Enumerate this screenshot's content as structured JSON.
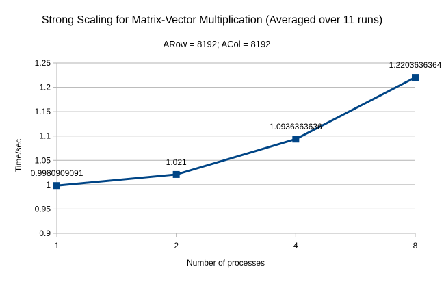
{
  "chart_data": {
    "type": "line",
    "title": "Strong Scaling for Matrix-Vector Multiplication (Averaged over 11 runs)",
    "subtitle": "ARow = 8192; ACol = 8192",
    "xlabel": "Number of processes",
    "ylabel": "Time/sec",
    "categories": [
      "1",
      "2",
      "4",
      "8"
    ],
    "series": [
      {
        "values": [
          0.9980909091,
          1.021,
          1.0936363636,
          1.2203636364
        ],
        "data_labels": [
          "0.9980909091",
          "1.021",
          "1.0936363636",
          "1.2203636364"
        ]
      }
    ],
    "ylim": [
      0.9,
      1.25
    ],
    "y_ticks": [
      "0.9",
      "0.95",
      "1",
      "1.05",
      "1.1",
      "1.15",
      "1.2",
      "1.25"
    ],
    "grid": true,
    "legend": "none",
    "series_color": "#004586",
    "grid_color": "#b3b3b3",
    "marker": "square-icon"
  }
}
